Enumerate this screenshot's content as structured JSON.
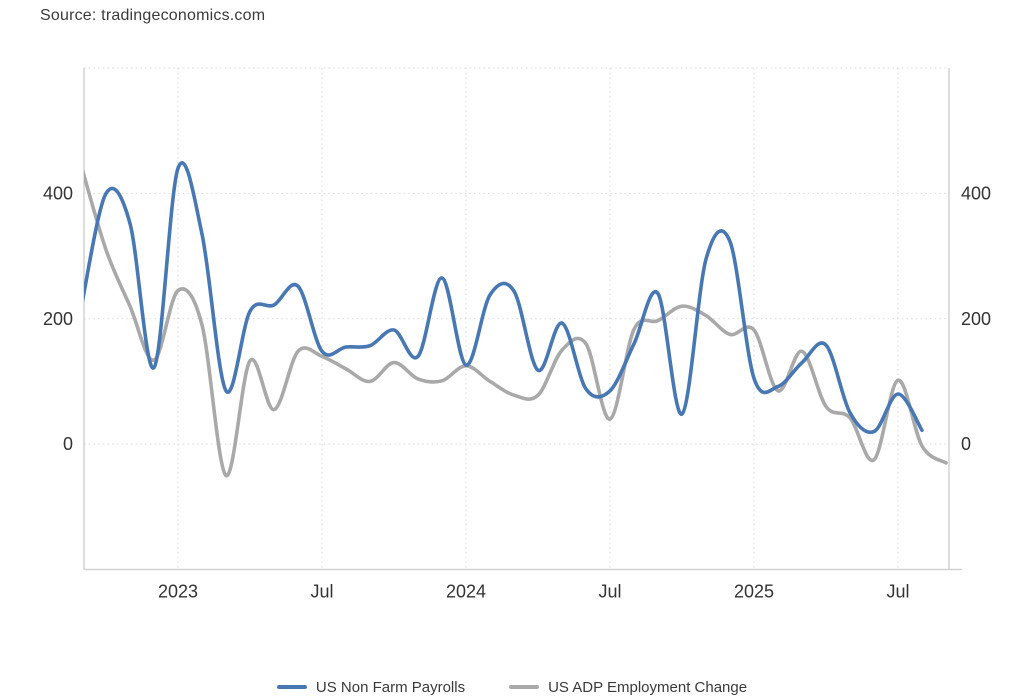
{
  "source": {
    "label": "Source: tradingeconomics.com"
  },
  "legend": [
    {
      "label": "US Non Farm Payrolls",
      "color": "#4878b4"
    },
    {
      "label": "US ADP Employment Change",
      "color": "#a9a9a9"
    }
  ],
  "colors": {
    "nfp_line": "#4878b4",
    "adp_line": "#a9a9a9",
    "grid": "#d9d9d9",
    "frame": "#d2d2d2",
    "tick_text": "#333333"
  },
  "chart_data": {
    "type": "line",
    "title": "",
    "xlabel": "",
    "ylabel": "",
    "x_unit": "month",
    "x": [
      "Sep 2022",
      "Oct 2022",
      "Nov 2022",
      "Dec 2022",
      "Jan 2023",
      "Feb 2023",
      "Mar 2023",
      "Apr 2023",
      "May 2023",
      "Jun 2023",
      "Jul 2023",
      "Aug 2023",
      "Sep 2023",
      "Oct 2023",
      "Nov 2023",
      "Dec 2023",
      "Jan 2024",
      "Feb 2024",
      "Mar 2024",
      "Apr 2024",
      "May 2024",
      "Jun 2024",
      "Jul 2024",
      "Aug 2024",
      "Sep 2024",
      "Oct 2024",
      "Nov 2024",
      "Dec 2024",
      "Jan 2025",
      "Feb 2025",
      "Mar 2025",
      "Apr 2025",
      "May 2025",
      "Jun 2025",
      "Jul 2025",
      "Aug 2025",
      "Sep 2025"
    ],
    "series": [
      {
        "name": "US Non Farm Payrolls",
        "color": "#4878b4",
        "values": [
          225,
          400,
          352,
          122,
          440,
          335,
          85,
          212,
          222,
          252,
          148,
          155,
          157,
          182,
          140,
          265,
          126,
          238,
          244,
          118,
          193,
          88,
          85,
          160,
          240,
          48,
          295,
          323,
          105,
          92,
          130,
          158,
          50,
          20,
          80,
          22,
          null
        ]
      },
      {
        "name": "US ADP Employment Change",
        "color": "#a9a9a9",
        "values": [
          440,
          310,
          220,
          134,
          245,
          190,
          -50,
          133,
          55,
          148,
          140,
          120,
          100,
          130,
          104,
          101,
          125,
          100,
          78,
          78,
          150,
          160,
          40,
          183,
          197,
          220,
          205,
          175,
          182,
          85,
          148,
          60,
          42,
          -25,
          102,
          -3,
          -30
        ]
      }
    ],
    "x_ticks": [
      {
        "index": 4,
        "label": "2023"
      },
      {
        "index": 10,
        "label": "Jul"
      },
      {
        "index": 16,
        "label": "2024"
      },
      {
        "index": 22,
        "label": "Jul"
      },
      {
        "index": 28,
        "label": "2025"
      },
      {
        "index": 34,
        "label": "Jul"
      }
    ],
    "y_ticks": [
      0,
      200,
      400
    ],
    "ylim": [
      -200,
      600
    ],
    "grid": "dotted, horizontal and vertical",
    "legend_position": "bottom-center",
    "y_axis_labels": "both sides"
  }
}
